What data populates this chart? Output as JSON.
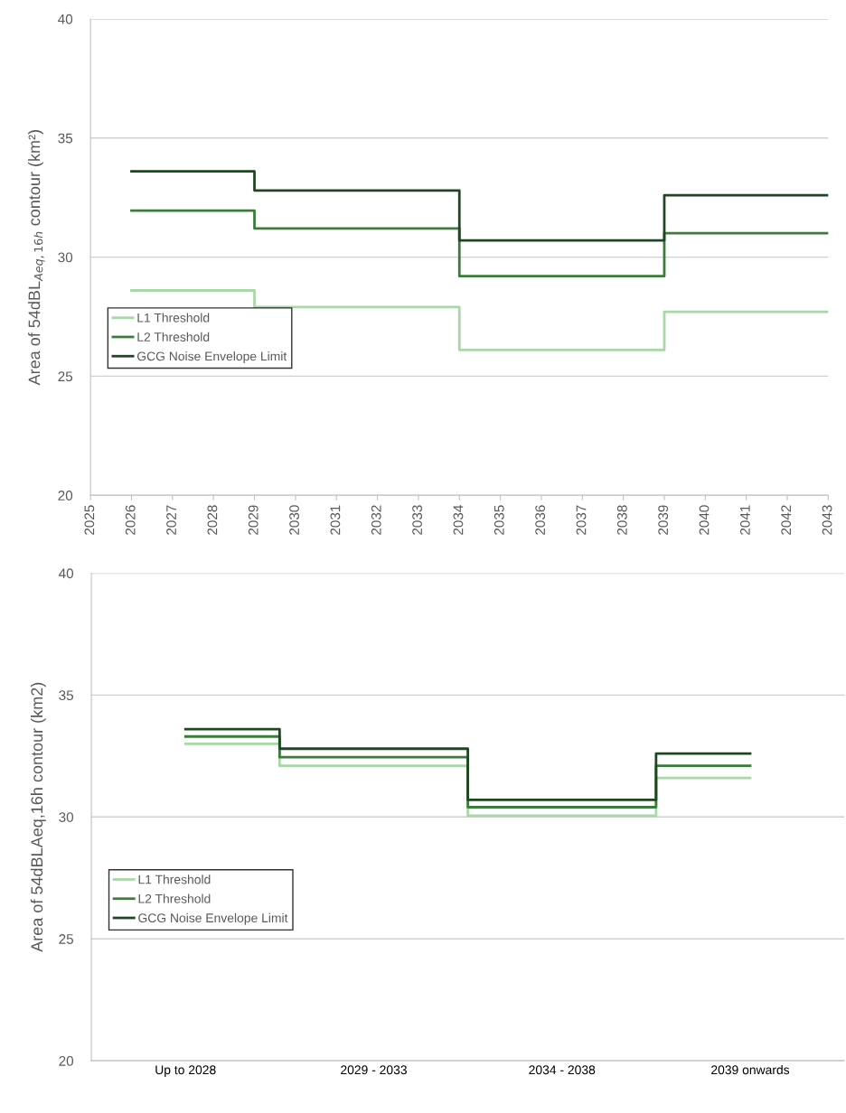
{
  "chart_data": [
    {
      "type": "step",
      "ylabel": "Area of 54dBL$_{Aeq,16h}$ contour (km²)",
      "x": [
        2026,
        2029,
        2034,
        2039,
        2043
      ],
      "series": [
        {
          "name": "L1 Threshold",
          "color": "#a8d8a8",
          "values": [
            28.6,
            27.9,
            26.1,
            27.7,
            27.7
          ]
        },
        {
          "name": "L2 Threshold",
          "color": "#3a7d3a",
          "values": [
            31.95,
            31.2,
            29.2,
            31.0,
            31.0
          ]
        },
        {
          "name": "GCG Noise Envelope Limit",
          "color": "#1e4620",
          "values": [
            33.6,
            32.8,
            30.7,
            32.6,
            32.6
          ]
        }
      ],
      "xlim": [
        2025,
        2043
      ],
      "xticks": [
        2025,
        2026,
        2027,
        2028,
        2029,
        2030,
        2031,
        2032,
        2033,
        2034,
        2035,
        2036,
        2037,
        2038,
        2039,
        2040,
        2041,
        2042,
        2043
      ],
      "ylim": [
        20,
        40
      ],
      "yticks": [
        20,
        25,
        30,
        35,
        40
      ],
      "grid": "y",
      "legend": "center left"
    },
    {
      "type": "step",
      "ylabel": "Area of 54dBLAeq,16h contour (km2)",
      "categories": [
        "Up to 2028",
        "2029 - 2033",
        "2034 - 2038",
        "2039 onwards"
      ],
      "series": [
        {
          "name": "L1 Threshold",
          "color": "#a8d8a8",
          "values": [
            33.0,
            32.1,
            30.05,
            31.6
          ]
        },
        {
          "name": "L2 Threshold",
          "color": "#3a7d3a",
          "values": [
            33.3,
            32.45,
            30.4,
            32.1
          ]
        },
        {
          "name": "GCG Noise Envelope Limit",
          "color": "#1e4620",
          "values": [
            33.6,
            32.8,
            30.7,
            32.6
          ]
        }
      ],
      "ylim": [
        20,
        40
      ],
      "yticks": [
        20,
        25,
        30,
        35,
        40
      ],
      "grid": "y",
      "legend": "center left"
    }
  ]
}
